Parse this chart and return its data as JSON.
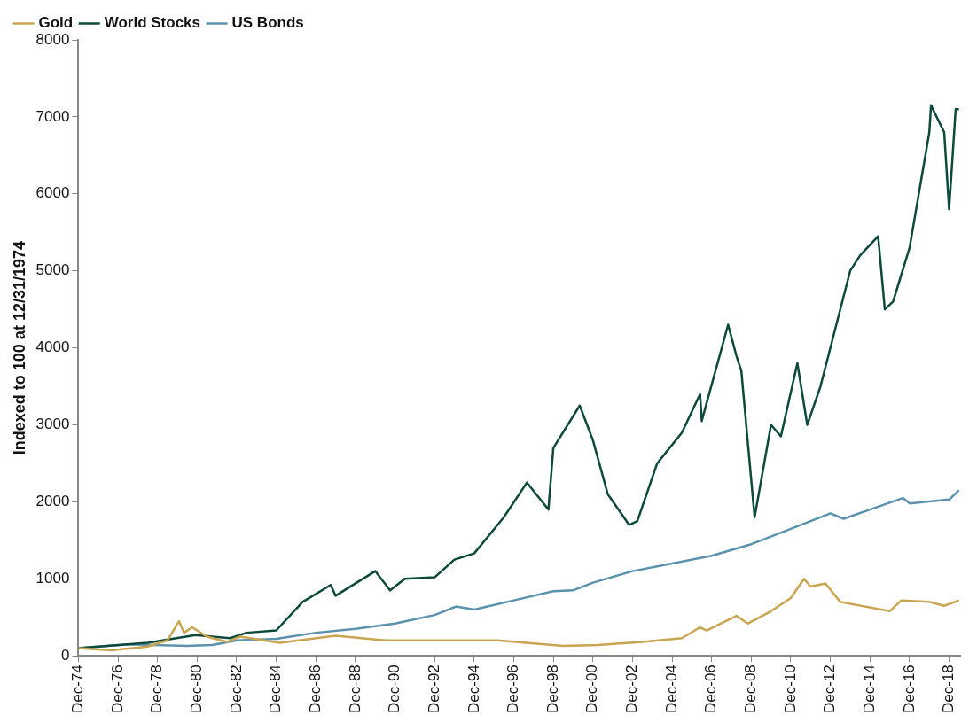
{
  "chart_data": {
    "type": "line",
    "ylabel": "Indexed to 100 at 12/31/1974",
    "legend": "top left",
    "grid": false,
    "marker": "none",
    "line_style": "solid",
    "xlim": [
      "1974-12",
      "2019-06-30"
    ],
    "xticks": [
      {
        "value": "1974-12",
        "label": "Dec-74"
      },
      {
        "value": "1976-12",
        "label": "Dec-76"
      },
      {
        "value": "1978-12",
        "label": "Dec-78"
      },
      {
        "value": "1980-12",
        "label": "Dec-80"
      },
      {
        "value": "1982-12",
        "label": "Dec-82"
      },
      {
        "value": "1984-12",
        "label": "Dec-84"
      },
      {
        "value": "1986-12",
        "label": "Dec-86"
      },
      {
        "value": "1988-12",
        "label": "Dec-88"
      },
      {
        "value": "1990-12",
        "label": "Dec-90"
      },
      {
        "value": "1992-12",
        "label": "Dec-92"
      },
      {
        "value": "1994-12",
        "label": "Dec-94"
      },
      {
        "value": "1996-12",
        "label": "Dec-96"
      },
      {
        "value": "1998-12",
        "label": "Dec-98"
      },
      {
        "value": "2000-12",
        "label": "Dec-00"
      },
      {
        "value": "2002-12",
        "label": "Dec-02"
      },
      {
        "value": "2004-12",
        "label": "Dec-04"
      },
      {
        "value": "2006-12",
        "label": "Dec-06"
      },
      {
        "value": "2008-12",
        "label": "Dec-08"
      },
      {
        "value": "2010-12",
        "label": "Dec-10"
      },
      {
        "value": "2012-12",
        "label": "Dec-12"
      },
      {
        "value": "2014-12",
        "label": "Dec-14"
      },
      {
        "value": "2016-12",
        "label": "Dec-16"
      },
      {
        "value": "2018-12",
        "label": "Dec-18"
      }
    ],
    "ylim": [
      0,
      8000
    ],
    "yticks": [
      0,
      1000,
      2000,
      3000,
      4000,
      5000,
      6000,
      7000,
      8000
    ],
    "series": [
      {
        "name": "Gold",
        "color": "#c9a451",
        "x": [
          "1974-12",
          "1976-08",
          "1978-06",
          "1979-06",
          "1980-01",
          "1980-04",
          "1980-09",
          "1981-06",
          "1982-06",
          "1983-02",
          "1985-02",
          "1987-12",
          "1990-06",
          "1993-06",
          "1996-02",
          "1999-06",
          "2001-03",
          "2003-06",
          "2005-06",
          "2006-05",
          "2006-09",
          "2008-03",
          "2008-10",
          "2009-12",
          "2010-12",
          "2011-08",
          "2011-12",
          "2012-09",
          "2013-06",
          "2015-12",
          "2016-07",
          "2017-12",
          "2018-09",
          "2019-06"
        ],
        "values": [
          100,
          70,
          120,
          200,
          450,
          300,
          370,
          250,
          180,
          250,
          170,
          260,
          200,
          200,
          200,
          130,
          140,
          180,
          230,
          370,
          330,
          520,
          420,
          580,
          750,
          1000,
          900,
          940,
          700,
          580,
          720,
          700,
          650,
          720
        ]
      },
      {
        "name": "World Stocks",
        "color": "#0d4a3b",
        "x": [
          "1974-12",
          "1978-06",
          "1980-11",
          "1982-08",
          "1983-06",
          "1984-12",
          "1986-04",
          "1987-09",
          "1987-12",
          "1989-12",
          "1990-09",
          "1991-06",
          "1992-12",
          "1993-12",
          "1994-12",
          "1996-06",
          "1997-08",
          "1998-09",
          "1998-12",
          "2000-04",
          "2000-12",
          "2001-09",
          "2002-10",
          "2003-03",
          "2004-03",
          "2005-06",
          "2006-05",
          "2006-06",
          "2007-10",
          "2008-03",
          "2008-06",
          "2009-02",
          "2009-12",
          "2010-06",
          "2011-04",
          "2011-10",
          "2012-06",
          "2013-12",
          "2014-06",
          "2015-05",
          "2015-09",
          "2016-02",
          "2016-12",
          "2017-12",
          "2018-01",
          "2018-09",
          "2018-12",
          "2019-04",
          "2019-06"
        ],
        "values": [
          100,
          170,
          270,
          230,
          300,
          330,
          700,
          920,
          780,
          1100,
          850,
          1000,
          1020,
          1250,
          1330,
          1800,
          2250,
          1900,
          2700,
          3250,
          2800,
          2100,
          1700,
          1750,
          2500,
          2900,
          3400,
          3050,
          4300,
          3900,
          3700,
          1800,
          3000,
          2850,
          3800,
          3000,
          3500,
          5000,
          5200,
          5450,
          4500,
          4600,
          5300,
          6800,
          7150,
          6800,
          5800,
          7100,
          7100
        ]
      },
      {
        "name": "US Bonds",
        "color": "#5b93ae",
        "x": [
          "1974-12",
          "1977-06",
          "1980-06",
          "1981-09",
          "1982-12",
          "1984-12",
          "1986-12",
          "1988-12",
          "1990-12",
          "1992-12",
          "1994-01",
          "1994-12",
          "1996-12",
          "1998-12",
          "1999-12",
          "2000-12",
          "2002-12",
          "2004-12",
          "2006-12",
          "2008-12",
          "2010-12",
          "2012-12",
          "2013-08",
          "2014-12",
          "2016-08",
          "2016-12",
          "2018-12",
          "2019-06"
        ],
        "values": [
          100,
          150,
          130,
          140,
          200,
          220,
          300,
          350,
          420,
          530,
          640,
          600,
          720,
          840,
          850,
          950,
          1100,
          1200,
          1300,
          1450,
          1650,
          1850,
          1780,
          1900,
          2050,
          1980,
          2030,
          2150
        ]
      }
    ]
  }
}
